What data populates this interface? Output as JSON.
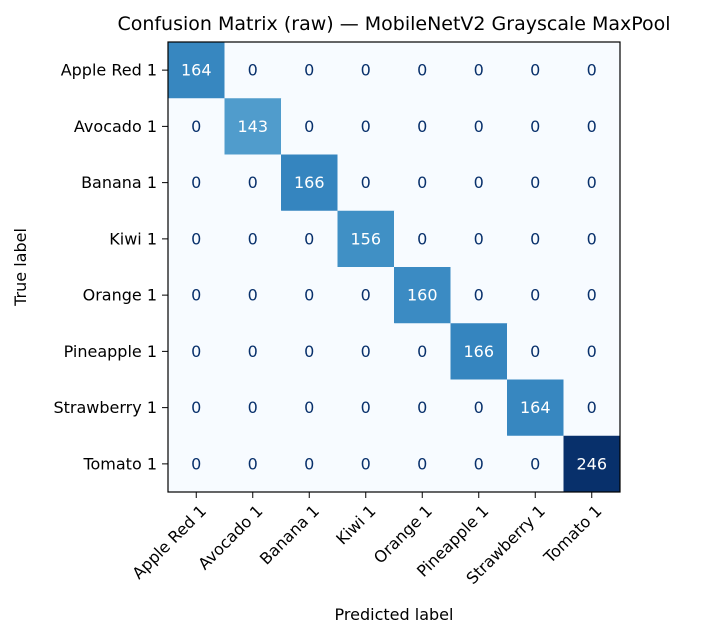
{
  "chart_data": {
    "type": "heatmap",
    "title": "Confusion Matrix (raw) — MobileNetV2 Grayscale MaxPool",
    "xlabel": "Predicted label",
    "ylabel": "True label",
    "x_categories": [
      "Apple Red 1",
      "Avocado 1",
      "Banana 1",
      "Kiwi 1",
      "Orange 1",
      "Pineapple 1",
      "Strawberry 1",
      "Tomato 1"
    ],
    "y_categories": [
      "Apple Red 1",
      "Avocado 1",
      "Banana 1",
      "Kiwi 1",
      "Orange 1",
      "Pineapple 1",
      "Strawberry 1",
      "Tomato 1"
    ],
    "values": [
      [
        164,
        0,
        0,
        0,
        0,
        0,
        0,
        0
      ],
      [
        0,
        143,
        0,
        0,
        0,
        0,
        0,
        0
      ],
      [
        0,
        0,
        166,
        0,
        0,
        0,
        0,
        0
      ],
      [
        0,
        0,
        0,
        156,
        0,
        0,
        0,
        0
      ],
      [
        0,
        0,
        0,
        0,
        160,
        0,
        0,
        0
      ],
      [
        0,
        0,
        0,
        0,
        0,
        166,
        0,
        0
      ],
      [
        0,
        0,
        0,
        0,
        0,
        0,
        164,
        0
      ],
      [
        0,
        0,
        0,
        0,
        0,
        0,
        0,
        246
      ]
    ],
    "colormap": "Blues",
    "color_range": [
      0,
      246
    ],
    "colorbar": false,
    "grid": false
  }
}
